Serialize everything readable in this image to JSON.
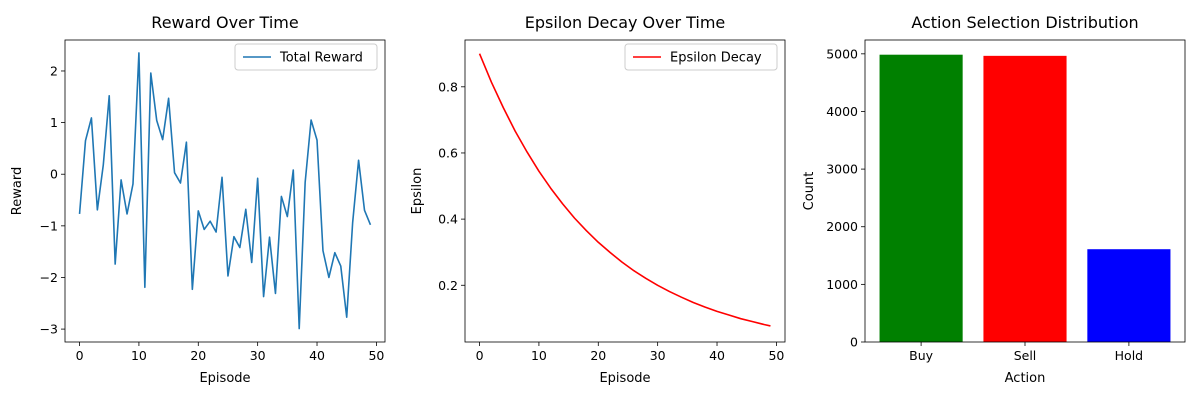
{
  "chart_data": [
    {
      "type": "line",
      "title": "Reward Over Time",
      "xlabel": "Episode",
      "ylabel": "Reward",
      "xlim": [
        -2.45,
        51.45
      ],
      "ylim": [
        -3.25,
        2.6
      ],
      "xticks": [
        0,
        10,
        20,
        30,
        40,
        50
      ],
      "yticks": [
        -3,
        -2,
        -1,
        0,
        1,
        2
      ],
      "legend": "upper right",
      "series": [
        {
          "name": "Total Reward",
          "color": "#1f77b4",
          "x": [
            0,
            1,
            2,
            3,
            4,
            5,
            6,
            7,
            8,
            9,
            10,
            11,
            12,
            13,
            14,
            15,
            16,
            17,
            18,
            19,
            20,
            21,
            22,
            23,
            24,
            25,
            26,
            27,
            28,
            29,
            30,
            31,
            32,
            33,
            34,
            35,
            36,
            37,
            38,
            39,
            40,
            41,
            42,
            43,
            44,
            45,
            46,
            47,
            48,
            49
          ],
          "y": [
            -0.77,
            0.65,
            1.09,
            -0.69,
            0.18,
            1.52,
            -1.74,
            -0.11,
            -0.77,
            -0.19,
            2.35,
            -2.19,
            1.96,
            1.04,
            0.67,
            1.47,
            0.03,
            -0.17,
            0.62,
            -2.23,
            -0.71,
            -1.07,
            -0.91,
            -1.12,
            -0.06,
            -1.97,
            -1.21,
            -1.42,
            -0.68,
            -1.71,
            -0.08,
            -2.37,
            -1.22,
            -2.31,
            -0.43,
            -0.82,
            0.08,
            -2.99,
            -0.16,
            1.05,
            0.66,
            -1.48,
            -2.0,
            -1.52,
            -1.78,
            -2.77,
            -0.94,
            0.27,
            -0.7,
            -0.98
          ]
        }
      ]
    },
    {
      "type": "line",
      "title": "Epsilon Decay Over Time",
      "xlabel": "Episode",
      "ylabel": "Epsilon",
      "xlim": [
        -2.45,
        51.45
      ],
      "ylim": [
        0.0285,
        0.9415
      ],
      "xticks": [
        0,
        10,
        20,
        30,
        40,
        50
      ],
      "yticks": [
        0.2,
        0.4,
        0.6,
        0.8
      ],
      "legend": "upper right",
      "series": [
        {
          "name": "Epsilon Decay",
          "color": "#ff0000",
          "x": [
            0,
            2,
            4,
            6,
            8,
            10,
            12,
            14,
            16,
            18,
            20,
            22,
            24,
            26,
            28,
            30,
            32,
            34,
            36,
            38,
            40,
            42,
            44,
            46,
            48,
            49
          ],
          "y": [
            0.9,
            0.814,
            0.737,
            0.666,
            0.603,
            0.545,
            0.493,
            0.446,
            0.403,
            0.365,
            0.33,
            0.299,
            0.27,
            0.244,
            0.221,
            0.2,
            0.181,
            0.164,
            0.148,
            0.134,
            0.121,
            0.11,
            0.099,
            0.09,
            0.081,
            0.077
          ]
        }
      ]
    },
    {
      "type": "bar",
      "title": "Action Selection Distribution",
      "xlabel": "Action",
      "ylabel": "Count",
      "ylim": [
        0,
        5240
      ],
      "yticks": [
        0,
        1000,
        2000,
        3000,
        4000,
        5000
      ],
      "categories": [
        "Buy",
        "Sell",
        "Hold"
      ],
      "values": [
        4985,
        4965,
        1610
      ],
      "colors": [
        "#008000",
        "#ff0000",
        "#0000ff"
      ]
    }
  ]
}
